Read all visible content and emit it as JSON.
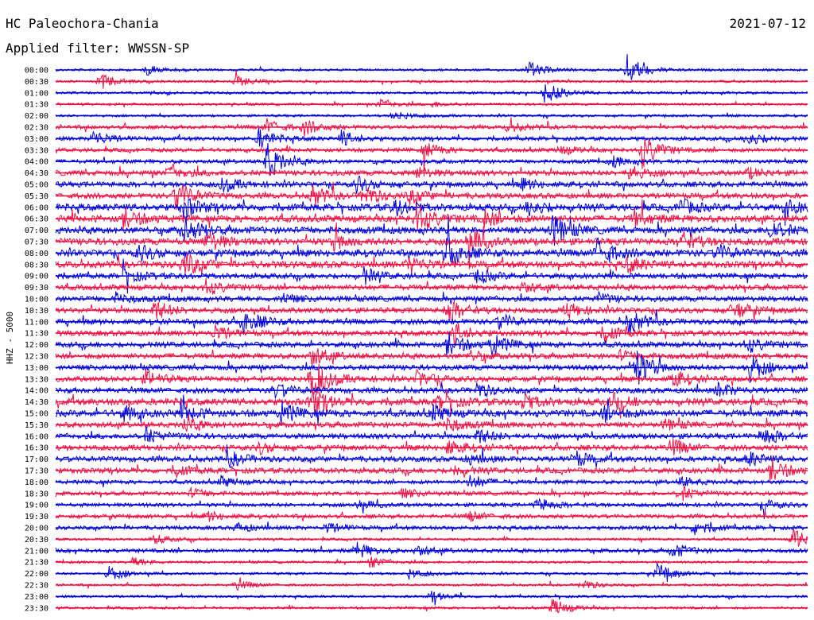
{
  "header": {
    "station": "HC Paleochora-Chania",
    "date": "2021-07-12",
    "filter": "Applied filter: WWSSN-SP"
  },
  "chart_data": {
    "type": "line",
    "title": "HC Paleochora-Chania",
    "subtitle": "Applied filter: WWSSN-SP",
    "date": "2021-07-12",
    "ylabel": "HHZ - 5000",
    "xlabel": "",
    "trace_duration_minutes": 30,
    "colors": {
      "odd_hour": "#0000dd",
      "half_hour": "#ee1144"
    },
    "traces": [
      {
        "label": "00:00",
        "color": "blue",
        "level": 1,
        "events": [
          [
            0.12,
            2
          ],
          [
            0.63,
            3
          ],
          [
            0.76,
            6
          ]
        ]
      },
      {
        "label": "00:30",
        "color": "red",
        "level": 1,
        "events": [
          [
            0.06,
            3
          ],
          [
            0.24,
            2
          ]
        ]
      },
      {
        "label": "01:00",
        "color": "blue",
        "level": 1,
        "events": [
          [
            0.65,
            5
          ]
        ]
      },
      {
        "label": "01:30",
        "color": "red",
        "level": 1,
        "events": [
          [
            0.43,
            2
          ],
          [
            0.5,
            1
          ]
        ]
      },
      {
        "label": "02:00",
        "color": "blue",
        "level": 1,
        "events": [
          [
            0.45,
            2
          ]
        ]
      },
      {
        "label": "02:30",
        "color": "red",
        "level": 2,
        "events": [
          [
            0.28,
            3
          ],
          [
            0.33,
            3
          ],
          [
            0.6,
            2
          ]
        ]
      },
      {
        "label": "03:00",
        "color": "blue",
        "level": 2,
        "events": [
          [
            0.05,
            3
          ],
          [
            0.27,
            4
          ],
          [
            0.38,
            3
          ],
          [
            0.92,
            3
          ]
        ]
      },
      {
        "label": "03:30",
        "color": "red",
        "level": 2,
        "events": [
          [
            0.49,
            3
          ],
          [
            0.78,
            7
          ],
          [
            0.67,
            2
          ]
        ]
      },
      {
        "label": "04:00",
        "color": "blue",
        "level": 2,
        "events": [
          [
            0.28,
            8
          ],
          [
            0.74,
            2
          ]
        ]
      },
      {
        "label": "04:30",
        "color": "red",
        "level": 3,
        "events": [
          [
            0.15,
            3
          ],
          [
            0.48,
            2
          ],
          [
            0.76,
            3
          ],
          [
            0.92,
            2
          ]
        ]
      },
      {
        "label": "05:00",
        "color": "blue",
        "level": 3,
        "events": [
          [
            0.22,
            3
          ],
          [
            0.4,
            3
          ],
          [
            0.62,
            2
          ]
        ]
      },
      {
        "label": "05:30",
        "color": "red",
        "level": 3,
        "events": [
          [
            0.16,
            6
          ],
          [
            0.34,
            4
          ],
          [
            0.41,
            4
          ],
          [
            0.47,
            3
          ]
        ]
      },
      {
        "label": "06:00",
        "color": "blue",
        "level": 4,
        "events": [
          [
            0.17,
            4
          ],
          [
            0.45,
            3
          ],
          [
            0.63,
            3
          ],
          [
            0.83,
            3
          ],
          [
            0.97,
            3
          ]
        ]
      },
      {
        "label": "06:30",
        "color": "red",
        "level": 4,
        "events": [
          [
            0.09,
            4
          ],
          [
            0.48,
            6
          ],
          [
            0.57,
            3
          ],
          [
            0.77,
            3
          ]
        ]
      },
      {
        "label": "07:00",
        "color": "blue",
        "level": 4,
        "events": [
          [
            0.17,
            5
          ],
          [
            0.66,
            6
          ],
          [
            0.95,
            4
          ]
        ]
      },
      {
        "label": "07:30",
        "color": "red",
        "level": 4,
        "events": [
          [
            0.2,
            4
          ],
          [
            0.37,
            3
          ],
          [
            0.55,
            5
          ],
          [
            0.83,
            4
          ]
        ]
      },
      {
        "label": "08:00",
        "color": "blue",
        "level": 4,
        "events": [
          [
            0.11,
            3
          ],
          [
            0.52,
            6
          ],
          [
            0.72,
            6
          ],
          [
            0.88,
            3
          ]
        ]
      },
      {
        "label": "08:30",
        "color": "red",
        "level": 4,
        "events": [
          [
            0.17,
            5
          ],
          [
            0.47,
            3
          ],
          [
            0.76,
            3
          ]
        ]
      },
      {
        "label": "09:00",
        "color": "blue",
        "level": 3,
        "events": [
          [
            0.09,
            3
          ],
          [
            0.41,
            3
          ],
          [
            0.56,
            3
          ]
        ]
      },
      {
        "label": "09:30",
        "color": "red",
        "level": 3,
        "events": [
          [
            0.2,
            3
          ],
          [
            0.62,
            2
          ]
        ]
      },
      {
        "label": "10:00",
        "color": "blue",
        "level": 3,
        "events": [
          [
            0.08,
            2
          ],
          [
            0.3,
            2
          ],
          [
            0.72,
            2
          ]
        ]
      },
      {
        "label": "10:30",
        "color": "red",
        "level": 3,
        "events": [
          [
            0.13,
            4
          ],
          [
            0.52,
            5
          ],
          [
            0.68,
            3
          ],
          [
            0.9,
            4
          ]
        ]
      },
      {
        "label": "11:00",
        "color": "blue",
        "level": 3,
        "events": [
          [
            0.25,
            5
          ],
          [
            0.59,
            3
          ],
          [
            0.76,
            5
          ]
        ]
      },
      {
        "label": "11:30",
        "color": "red",
        "level": 3,
        "events": [
          [
            0.21,
            3
          ],
          [
            0.53,
            4
          ],
          [
            0.73,
            3
          ]
        ]
      },
      {
        "label": "12:00",
        "color": "blue",
        "level": 3,
        "events": [
          [
            0.52,
            5
          ],
          [
            0.58,
            4
          ],
          [
            0.92,
            3
          ]
        ]
      },
      {
        "label": "12:30",
        "color": "red",
        "level": 3,
        "events": [
          [
            0.34,
            4
          ],
          [
            0.55,
            2
          ],
          [
            0.75,
            2
          ]
        ]
      },
      {
        "label": "13:00",
        "color": "blue",
        "level": 3,
        "events": [
          [
            0.77,
            8
          ],
          [
            0.92,
            6
          ]
        ]
      },
      {
        "label": "13:30",
        "color": "red",
        "level": 3,
        "events": [
          [
            0.34,
            9
          ],
          [
            0.12,
            3
          ],
          [
            0.48,
            3
          ],
          [
            0.82,
            3
          ]
        ]
      },
      {
        "label": "14:00",
        "color": "blue",
        "level": 3,
        "events": [
          [
            0.29,
            3
          ],
          [
            0.56,
            3
          ],
          [
            0.88,
            3
          ]
        ]
      },
      {
        "label": "14:30",
        "color": "red",
        "level": 4,
        "events": [
          [
            0.34,
            5
          ],
          [
            0.51,
            3
          ],
          [
            0.62,
            3
          ],
          [
            0.74,
            3
          ]
        ]
      },
      {
        "label": "15:00",
        "color": "blue",
        "level": 4,
        "events": [
          [
            0.09,
            3
          ],
          [
            0.17,
            3
          ],
          [
            0.3,
            4
          ],
          [
            0.5,
            3
          ],
          [
            0.73,
            3
          ]
        ]
      },
      {
        "label": "15:30",
        "color": "red",
        "level": 3,
        "events": [
          [
            0.17,
            3
          ],
          [
            0.52,
            3
          ],
          [
            0.81,
            2
          ]
        ]
      },
      {
        "label": "16:00",
        "color": "blue",
        "level": 3,
        "events": [
          [
            0.12,
            3
          ],
          [
            0.56,
            3
          ],
          [
            0.94,
            4
          ]
        ]
      },
      {
        "label": "16:30",
        "color": "red",
        "level": 3,
        "events": [
          [
            0.27,
            2
          ],
          [
            0.52,
            3
          ],
          [
            0.82,
            3
          ]
        ]
      },
      {
        "label": "17:00",
        "color": "blue",
        "level": 3,
        "events": [
          [
            0.23,
            3
          ],
          [
            0.55,
            2
          ],
          [
            0.69,
            3
          ],
          [
            0.92,
            3
          ]
        ]
      },
      {
        "label": "17:30",
        "color": "red",
        "level": 3,
        "events": [
          [
            0.16,
            2
          ],
          [
            0.53,
            2
          ],
          [
            0.95,
            5
          ]
        ]
      },
      {
        "label": "18:00",
        "color": "blue",
        "level": 2,
        "events": [
          [
            0.22,
            2
          ],
          [
            0.55,
            3
          ],
          [
            0.83,
            2
          ]
        ]
      },
      {
        "label": "18:30",
        "color": "red",
        "level": 2,
        "events": [
          [
            0.18,
            2
          ],
          [
            0.46,
            2
          ],
          [
            0.83,
            3
          ]
        ]
      },
      {
        "label": "19:00",
        "color": "blue",
        "level": 2,
        "events": [
          [
            0.4,
            2
          ],
          [
            0.64,
            3
          ],
          [
            0.94,
            2
          ]
        ]
      },
      {
        "label": "19:30",
        "color": "red",
        "level": 2,
        "events": [
          [
            0.2,
            2
          ],
          [
            0.55,
            2
          ]
        ]
      },
      {
        "label": "20:00",
        "color": "blue",
        "level": 2,
        "events": [
          [
            0.24,
            2
          ],
          [
            0.36,
            2
          ],
          [
            0.85,
            3
          ]
        ]
      },
      {
        "label": "20:30",
        "color": "red",
        "level": 1,
        "events": [
          [
            0.13,
            2
          ],
          [
            0.98,
            5
          ]
        ]
      },
      {
        "label": "21:00",
        "color": "blue",
        "level": 2,
        "events": [
          [
            0.4,
            3
          ],
          [
            0.48,
            2
          ],
          [
            0.82,
            3
          ]
        ]
      },
      {
        "label": "21:30",
        "color": "red",
        "level": 1,
        "events": [
          [
            0.1,
            2
          ],
          [
            0.42,
            2
          ]
        ]
      },
      {
        "label": "22:00",
        "color": "blue",
        "level": 1,
        "events": [
          [
            0.07,
            3
          ],
          [
            0.47,
            2
          ],
          [
            0.8,
            4
          ]
        ]
      },
      {
        "label": "22:30",
        "color": "red",
        "level": 1,
        "events": [
          [
            0.24,
            2
          ],
          [
            0.7,
            2
          ]
        ]
      },
      {
        "label": "23:00",
        "color": "blue",
        "level": 1,
        "events": [
          [
            0.5,
            2
          ]
        ]
      },
      {
        "label": "23:30",
        "color": "red",
        "level": 1,
        "events": [
          [
            0.66,
            4
          ]
        ]
      }
    ]
  }
}
